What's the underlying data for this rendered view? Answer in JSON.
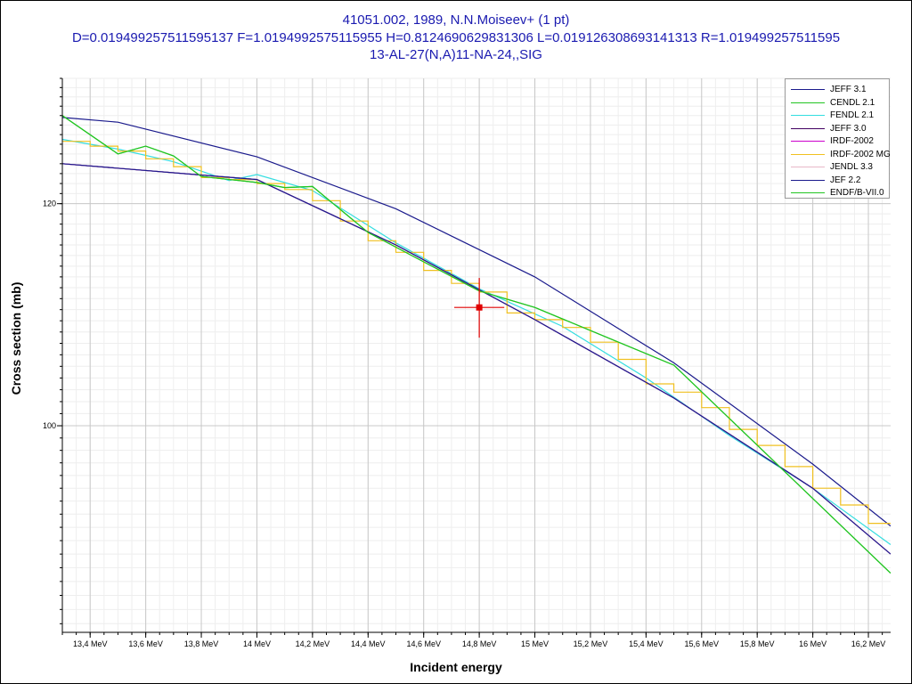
{
  "title": {
    "line1": "41051.002, 1989, N.N.Moiseev+ (1 pt)",
    "line2": "D=0.019499257511595137 F=1.0194992575115955 H=0.8124690629831306 L=0.019126308693141313 R=1.019499257511595",
    "line3": "13-AL-27(N,A)11-NA-24,,SIG"
  },
  "chart_data": {
    "type": "line",
    "xlabel": "Incident energy",
    "ylabel": "Cross section (mb)",
    "xlim": [
      13.3,
      16.28
    ],
    "ylim": [
      84.4,
      133
    ],
    "yscale": "log",
    "grid": true,
    "legend_position": "top-right",
    "x_ticks": [
      13.4,
      13.6,
      13.8,
      14.0,
      14.2,
      14.4,
      14.6,
      14.8,
      15.0,
      15.2,
      15.4,
      15.6,
      15.8,
      16.0,
      16.2
    ],
    "x_tick_labels": [
      "13,4 MeV",
      "13,6 MeV",
      "13,8 MeV",
      "14 MeV",
      "14,2 MeV",
      "14,4 MeV",
      "14,6 MeV",
      "14,8 MeV",
      "15 MeV",
      "15,2 MeV",
      "15,4 MeV",
      "15,6 MeV",
      "15,8 MeV",
      "16 MeV",
      "16,2 MeV"
    ],
    "y_ticks": [
      100,
      120
    ],
    "y_tick_labels": [
      "100",
      "120"
    ],
    "experimental_point": {
      "x": 14.8,
      "y": 110.2,
      "xerr": 0.09,
      "yerr": 2.7,
      "color": "#e00000"
    },
    "series": [
      {
        "name": "JEFF 3.1",
        "color": "#1a1a8c",
        "step": false,
        "x": [
          13.3,
          13.5,
          14.0,
          14.5,
          15.0,
          15.5,
          16.0,
          16.28
        ],
        "y": [
          128.8,
          128.3,
          124.7,
          119.5,
          113.0,
          105.3,
          96.9,
          92.1
        ]
      },
      {
        "name": "CENDL 2.1",
        "color": "#22c522",
        "step": false,
        "x": [
          13.3,
          13.5,
          13.6,
          13.7,
          13.8,
          14.0,
          14.1,
          14.2,
          14.4,
          14.6,
          14.8,
          15.0,
          15.5,
          16.28
        ],
        "y": [
          129.0,
          125.0,
          125.8,
          124.8,
          122.7,
          122.1,
          121.6,
          121.7,
          117.2,
          114.4,
          111.7,
          110.2,
          105.1,
          88.6
        ]
      },
      {
        "name": "FENDL 2.1",
        "color": "#33dde0",
        "step": false,
        "x": [
          13.3,
          13.5,
          13.7,
          13.9,
          14.0,
          14.2,
          14.5,
          14.8,
          15.1,
          15.4,
          15.7,
          16.0,
          16.28
        ],
        "y": [
          126.5,
          125.5,
          124.2,
          122.3,
          122.9,
          121.3,
          116.2,
          111.9,
          108.5,
          104.0,
          99.2,
          95.0,
          90.7
        ]
      },
      {
        "name": "JEFF 3.0",
        "color": "#400060",
        "step": false,
        "x": [
          13.3,
          14.0,
          14.5,
          15.0,
          15.5,
          16.0,
          16.28
        ],
        "y": [
          124.0,
          122.4,
          116.0,
          109.1,
          102.3,
          95.0,
          90.0
        ]
      },
      {
        "name": "IRDF-2002",
        "color": "#cc00cc",
        "step": false,
        "x": [
          13.3,
          14.0,
          14.5,
          15.0,
          15.5,
          16.0,
          16.28
        ],
        "y": [
          124.0,
          122.4,
          116.0,
          109.1,
          102.3,
          95.0,
          90.0
        ]
      },
      {
        "name": "IRDF-2002 MG",
        "color": "#f0c020",
        "step": true,
        "x": [
          13.3,
          13.4,
          13.5,
          13.6,
          13.7,
          13.8,
          13.9,
          14.0,
          14.1,
          14.2,
          14.3,
          14.4,
          14.5,
          14.6,
          14.7,
          14.8,
          14.9,
          15.0,
          15.1,
          15.2,
          15.3,
          15.4,
          15.5,
          15.6,
          15.7,
          15.8,
          15.9,
          16.0,
          16.1,
          16.2,
          16.28
        ],
        "y": [
          126.3,
          125.8,
          125.3,
          124.5,
          123.7,
          122.6,
          122.4,
          122.0,
          121.4,
          120.3,
          118.3,
          116.4,
          115.3,
          113.6,
          112.4,
          111.6,
          109.7,
          109.1,
          108.4,
          107.1,
          105.6,
          103.5,
          102.8,
          101.5,
          99.7,
          98.4,
          96.7,
          95.0,
          93.7,
          92.3,
          91.0
        ]
      },
      {
        "name": "JENDL 3.3",
        "color": "#e8b8c8",
        "step": false,
        "x": [
          13.3,
          14.0,
          14.5,
          15.0,
          15.5,
          16.0,
          16.28
        ],
        "y": [
          124.0,
          122.4,
          116.0,
          109.1,
          102.3,
          95.0,
          90.0
        ]
      },
      {
        "name": "JEF 2.2",
        "color": "#1a1a8c",
        "step": false,
        "x": [
          13.3,
          14.0,
          14.5,
          15.0,
          15.5,
          16.0,
          16.28
        ],
        "y": [
          124.0,
          122.4,
          116.0,
          109.1,
          102.3,
          95.0,
          90.0
        ]
      },
      {
        "name": "ENDF/B-VII.0",
        "color": "#22c522",
        "step": false,
        "x": [
          13.3,
          13.5,
          13.6,
          13.7,
          13.8,
          14.0,
          14.1,
          14.2,
          14.4,
          14.6,
          14.8,
          15.0,
          15.5,
          16.28
        ],
        "y": [
          129.0,
          125.0,
          125.8,
          124.8,
          122.7,
          122.1,
          121.6,
          121.7,
          117.2,
          114.4,
          111.7,
          110.2,
          105.1,
          88.6
        ]
      }
    ]
  }
}
